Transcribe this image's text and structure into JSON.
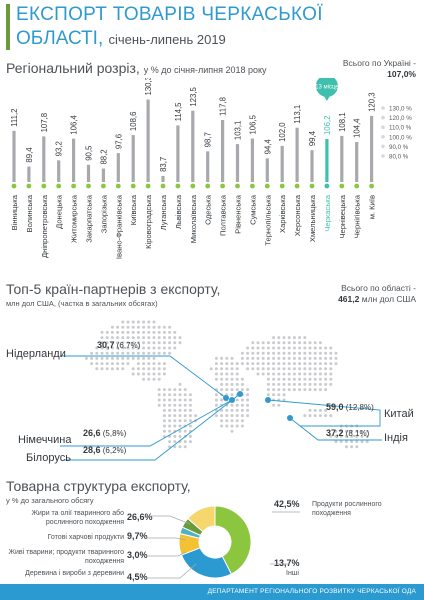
{
  "header": {
    "title_line1": "ЕКСПОРТ ТОВАРІВ ЧЕРКАСЬКОЇ",
    "title_line2": "ОБЛАСТІ,",
    "period": "січень-липень 2019"
  },
  "regional": {
    "title": "Регіональний розріз,",
    "subtitle": "у % до січня-липня 2018 року",
    "total_label": "Всього по Україні -",
    "total_value": "107,0%",
    "highlight_badge": "13 місце"
  },
  "partners": {
    "title": "Топ-5 країн-партнерів з експорту,",
    "subtitle": "млн дол США, (частка в загальних обсягах)",
    "total_label": "Всього по області -",
    "total_value": "461,2",
    "total_unit": "млн дол США"
  },
  "structure": {
    "title": "Товарна структура експорту,",
    "subtitle": "у % до загального обсягу"
  },
  "footer": {
    "text": "ДЕПАРТАМЕНТ РЕГІОНАЛЬНОГО РОЗВИТКУ ЧЕРКАСЬКОЇ ОДА"
  },
  "colors": {
    "accent": "#2f9ad0",
    "bar": "#a7a9ac",
    "highlight": "#3fbfae",
    "green": "#8cc63f",
    "yellow": "#f2c233"
  },
  "chart_data": [
    {
      "type": "bar",
      "categories": [
        "Вінницька",
        "Волинська",
        "Дніпропетровська",
        "Донецька",
        "Житомирська",
        "Закарпатська",
        "Запорізька",
        "Івано-Франківська",
        "Київська",
        "Кіровоградська",
        "Луганська",
        "Львівська",
        "Миколаївська",
        "Одеська",
        "Полтавська",
        "Рівненська",
        "Сумська",
        "Тернопільська",
        "Харківська",
        "Херсонська",
        "Хмельницька",
        "Черкаська",
        "Чернівецька",
        "Чернігівська",
        "м. Київ"
      ],
      "values": [
        111.2,
        89.4,
        107.8,
        93.2,
        106.4,
        90.5,
        88.2,
        97.6,
        108.6,
        130.3,
        83.7,
        114.5,
        123.5,
        98.7,
        117.8,
        103.1,
        106.5,
        94.4,
        102.0,
        113.1,
        99.4,
        106.2,
        108.1,
        104.4,
        120.3
      ],
      "value_labels": [
        "111,2",
        "89,4",
        "107,8",
        "93,2",
        "106,4",
        "90,5",
        "88,2",
        "97,6",
        "108,6",
        "130,3",
        "83,7",
        "114,5",
        "123,5",
        "98,7",
        "117,8",
        "103,1",
        "106,5",
        "94,4",
        "102,0",
        "113,1",
        "99,4",
        "106,2",
        "108,1",
        "104,4",
        "120,3"
      ],
      "highlight": "Черкаська",
      "y_ticks": [
        "130,0 %",
        "120,0 %",
        "110,0 %",
        "100,0 %",
        "90,0 %",
        "80,0 %"
      ],
      "ylim": [
        80,
        130
      ]
    },
    {
      "type": "bar",
      "categories": [
        "Нідерланди",
        "Китай",
        "Індія",
        "Німеччина",
        "Білорусь"
      ],
      "values": [
        30.7,
        59.0,
        37.2,
        26.6,
        28.6
      ],
      "value_labels": [
        "30,7",
        "59,0",
        "37,2",
        "26,6",
        "28,6"
      ],
      "shares": [
        "(6,7%)",
        "(12,8%)",
        "(8,1%)",
        "(5,8%)",
        "(6,2%)"
      ]
    },
    {
      "type": "pie",
      "categories": [
        "Продукти рослинного походження",
        "Жири та олії тваринного або рослинного походження",
        "Готові харчові продукти",
        "Живі тварини; продукти тваринного походження",
        "Деревина і вироби з деревини",
        "Інші"
      ],
      "values": [
        42.5,
        26.6,
        9.7,
        3.0,
        4.5,
        13.7
      ],
      "value_labels": [
        "42,5%",
        "26,6%",
        "9,7%",
        "3,0%",
        "4,5%",
        "13,7%"
      ],
      "colors": [
        "#8cc63f",
        "#2b9ad1",
        "#f2c233",
        "#4db3c4",
        "#6a9a3a",
        "#f5d76e"
      ]
    }
  ]
}
